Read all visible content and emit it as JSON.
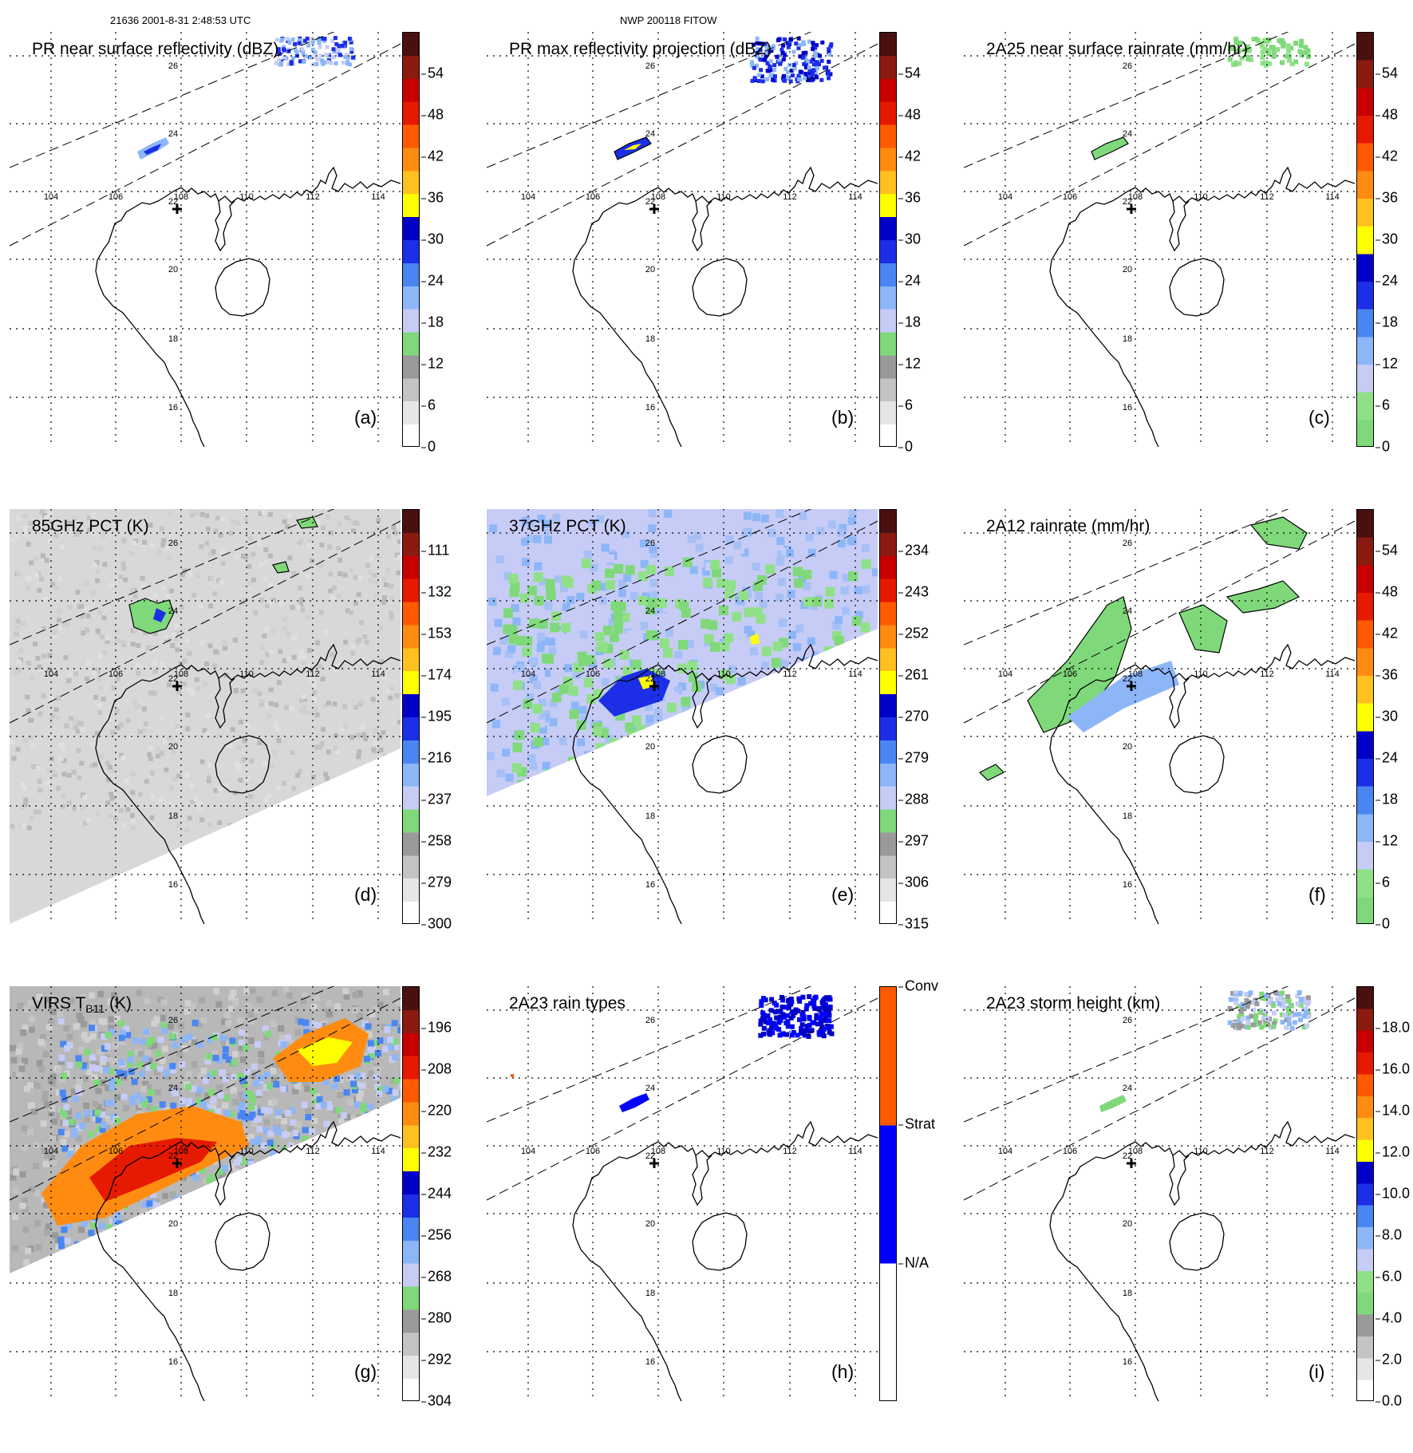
{
  "header": {
    "orbit_time": "21636 2001-8-31 2:48:53 UTC",
    "storm_id": "NWP 200118 FITOW"
  },
  "map_labels": {
    "lon": [
      "104",
      "106",
      "108",
      "110",
      "112",
      "114"
    ],
    "lat": [
      "26",
      "24",
      "22",
      "20",
      "18",
      "16"
    ]
  },
  "panels": [
    {
      "id": "a",
      "title": "PR near surface reflectivity (dBZ)",
      "label": "(a)",
      "ticks": [
        "54",
        "48",
        "42",
        "36",
        "30",
        "24",
        "18",
        "12",
        "6",
        "0"
      ],
      "scale": "refl",
      "field": "pr-surface"
    },
    {
      "id": "b",
      "title": "PR max reflectivity projection (dBZ)",
      "label": "(b)",
      "ticks": [
        "54",
        "48",
        "42",
        "36",
        "30",
        "24",
        "18",
        "12",
        "6",
        "0"
      ],
      "scale": "refl",
      "field": "pr-max"
    },
    {
      "id": "c",
      "title": "2A25 near surface rainrate (mm/hr)",
      "label": "(c)",
      "ticks": [
        "54",
        "48",
        "42",
        "36",
        "30",
        "24",
        "18",
        "12",
        "6",
        "0"
      ],
      "scale": "rain",
      "field": "pr-rain"
    },
    {
      "id": "d",
      "title": "85GHz PCT (K)",
      "label": "(d)",
      "ticks": [
        "111",
        "132",
        "153",
        "174",
        "195",
        "216",
        "237",
        "258",
        "279",
        "300"
      ],
      "scale": "pct",
      "field": "pct85"
    },
    {
      "id": "e",
      "title": "37GHz PCT (K)",
      "label": "(e)",
      "ticks": [
        "234",
        "243",
        "252",
        "261",
        "270",
        "279",
        "288",
        "297",
        "306",
        "315"
      ],
      "scale": "pct",
      "field": "pct37"
    },
    {
      "id": "f",
      "title": "2A12 rainrate (mm/hr)",
      "label": "(f)",
      "ticks": [
        "54",
        "48",
        "42",
        "36",
        "30",
        "24",
        "18",
        "12",
        "6",
        "0"
      ],
      "scale": "rain",
      "field": "tmi-rain"
    },
    {
      "id": "g",
      "title": "VIRS T",
      "title_sub": "B11",
      "title_unit": " (K)",
      "label": "(g)",
      "ticks": [
        "196",
        "208",
        "220",
        "232",
        "244",
        "256",
        "268",
        "280",
        "292",
        "304"
      ],
      "scale": "ir",
      "field": "virs"
    },
    {
      "id": "h",
      "title": "2A23 rain types",
      "label": "(h)",
      "ticks": [
        "Conv",
        "Strat",
        "N/A"
      ],
      "scale": "type",
      "field": "rain-type"
    },
    {
      "id": "i",
      "title": "2A23 storm height (km)",
      "label": "(i)",
      "ticks": [
        "18.0",
        "16.0",
        "14.0",
        "12.0",
        "10.0",
        "8.0",
        "6.0",
        "4.0",
        "2.0",
        "0.0"
      ],
      "scale": "height",
      "field": "storm-height"
    }
  ],
  "colors": {
    "refl": [
      "#ffffff",
      "#e6e6e6",
      "#c4c4c4",
      "#9a9a9a",
      "#7fd97a",
      "#c6ccf5",
      "#8cb6f8",
      "#4a86f2",
      "#1c2ee6",
      "#0000c8",
      "#ffff00",
      "#ffc020",
      "#ff8c10",
      "#ff5a00",
      "#e61a00",
      "#c80000",
      "#8b1a10",
      "#4a1010"
    ],
    "rain": [
      "#7fd97a",
      "#90e088",
      "#c6ccf5",
      "#8cb6f8",
      "#4a86f2",
      "#1c2ee6",
      "#0000c8",
      "#ffff00",
      "#ffc020",
      "#ff8c10",
      "#ff5a00",
      "#e61a00",
      "#c80000",
      "#8b1a10",
      "#4a1010"
    ],
    "pct": [
      "#ffffff",
      "#e6e6e6",
      "#c4c4c4",
      "#9a9a9a",
      "#7fd97a",
      "#c6ccf5",
      "#8cb6f8",
      "#4a86f2",
      "#1c2ee6",
      "#0000c8",
      "#ffff00",
      "#ffc020",
      "#ff8c10",
      "#ff5a00",
      "#e61a00",
      "#c80000",
      "#8b1a10",
      "#4a1010"
    ],
    "ir": [
      "#ffffff",
      "#e6e6e6",
      "#c4c4c4",
      "#9a9a9a",
      "#7fd97a",
      "#c6ccf5",
      "#8cb6f8",
      "#4a86f2",
      "#1c2ee6",
      "#0000c8",
      "#ffff00",
      "#ffc020",
      "#ff8c10",
      "#ff5a00",
      "#e61a00",
      "#c80000",
      "#8b1a10",
      "#4a1010"
    ],
    "type": [
      "#ffffff",
      "#ffffff",
      "#0000ff",
      "#0000ff",
      "#ff5a00",
      "#ff5a00"
    ],
    "height": [
      "#ffffff",
      "#e6e6e6",
      "#c4c4c4",
      "#9a9a9a",
      "#7fd97a",
      "#90e088",
      "#c6ccf5",
      "#8cb6f8",
      "#4a86f2",
      "#1c2ee6",
      "#0000c8",
      "#ffff00",
      "#ffc020",
      "#ff8c10",
      "#ff5a00",
      "#e61a00",
      "#c80000",
      "#8b1a10",
      "#4a1010"
    ],
    "green": "#7fd97a",
    "blue": "#1c2ee6",
    "lightblue": "#8cb6f8",
    "yellow": "#ffff00",
    "orange": "#ff8c10",
    "red": "#e61a00",
    "grey": "#b0b0b0"
  }
}
